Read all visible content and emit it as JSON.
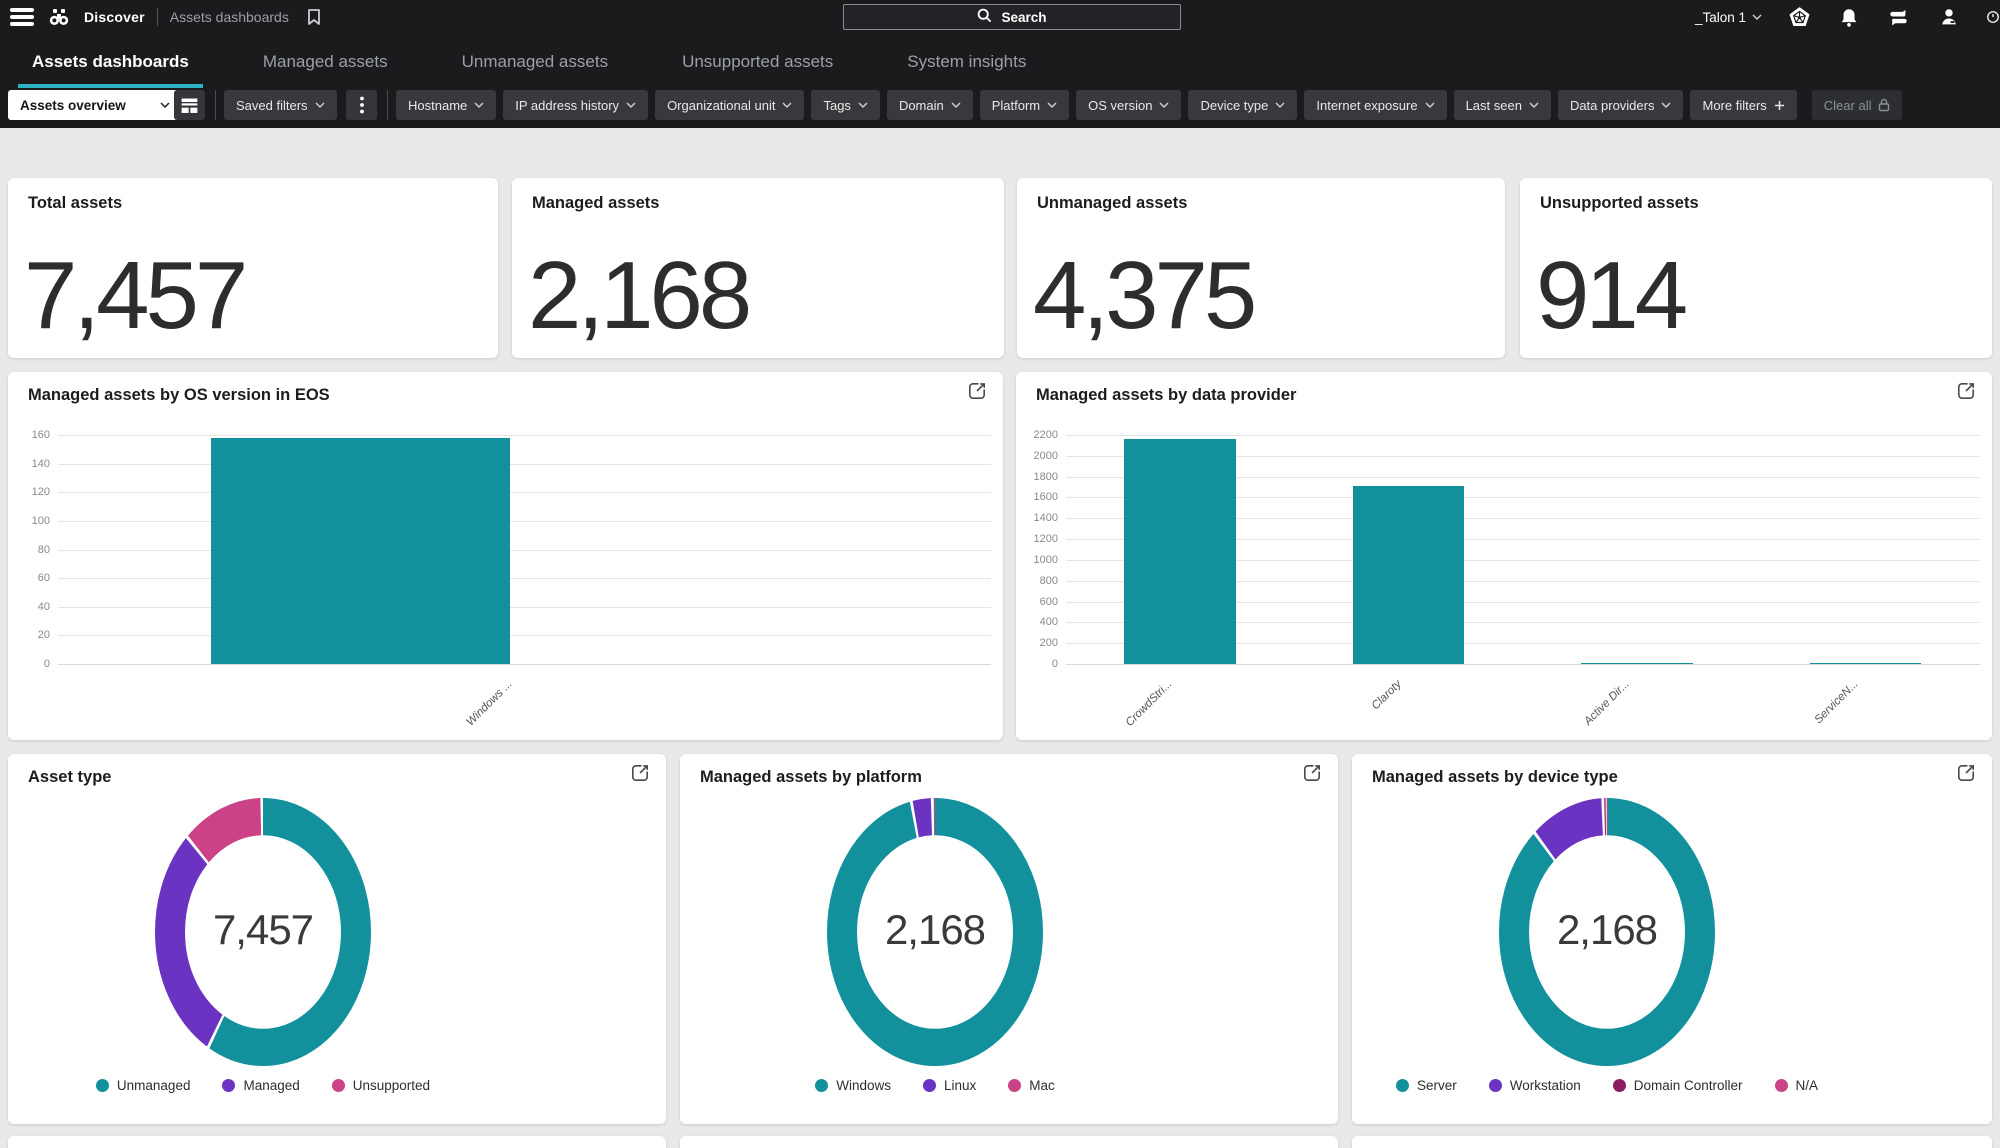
{
  "colors": {
    "teal": "#12919d",
    "purple": "#6a33c2",
    "pink": "#cb4286",
    "dark_magenta": "#8d1c63",
    "accent_underline": "#2bb3c3",
    "topbar_bg": "#1b1b1d",
    "content_bg": "#e9e9e9"
  },
  "header": {
    "product": "Discover",
    "breadcrumb": "Assets dashboards",
    "search_label": "Search",
    "account": "_Talon 1",
    "icons": [
      "hamburger-menu",
      "binoculars-discover",
      "bookmark",
      "search-magnifier",
      "marketplace-pentagon",
      "notifications-bell",
      "message-stack",
      "user-profile",
      "clock-partial"
    ]
  },
  "tabs": [
    {
      "label": "Assets dashboards",
      "active": true
    },
    {
      "label": "Managed assets",
      "active": false
    },
    {
      "label": "Unmanaged assets",
      "active": false
    },
    {
      "label": "Unsupported assets",
      "active": false
    },
    {
      "label": "System insights",
      "active": false
    }
  ],
  "filter_bar": {
    "view_selector": "Assets overview",
    "saved_filters": "Saved filters",
    "filters": [
      "Hostname",
      "IP address history",
      "Organizational unit",
      "Tags",
      "Domain",
      "Platform",
      "OS version",
      "Device type",
      "Internet exposure",
      "Last seen",
      "Data providers"
    ],
    "more_filters": "More filters",
    "clear_all": "Clear all"
  },
  "stats": [
    {
      "label": "Total assets",
      "value": "7,457"
    },
    {
      "label": "Managed assets",
      "value": "2,168"
    },
    {
      "label": "Unmanaged assets",
      "value": "4,375"
    },
    {
      "label": "Unsupported assets",
      "value": "914"
    }
  ],
  "chart_data": [
    {
      "id": "os-version-eos",
      "type": "bar",
      "title": "Managed assets by OS version in EOS",
      "categories": [
        "Windows ..."
      ],
      "values": [
        158
      ],
      "ylim": [
        0,
        160
      ],
      "ytick_step": 20,
      "grid": true,
      "legend": null,
      "bar_color": "#12919d",
      "bar_centers_pct": [
        32.4
      ],
      "label_centers_pct": [
        48
      ],
      "bar_width_pct": 32
    },
    {
      "id": "data-provider",
      "type": "bar",
      "title": "Managed assets by data provider",
      "categories": [
        "CrowdStri...",
        "Claroty",
        "Active Dir...",
        "ServiceN..."
      ],
      "values": [
        2160,
        1710,
        9,
        4
      ],
      "ylim": [
        0,
        2200
      ],
      "ytick_step": 200,
      "grid": true,
      "legend": null,
      "bar_color": "#12919d",
      "bar_centers_pct": [
        12.5,
        37.5,
        62.5,
        87.5
      ],
      "label_centers_pct": [
        11,
        36,
        61,
        86
      ],
      "bar_width_pct": 12.2
    },
    {
      "id": "asset-type",
      "type": "donut",
      "title": "Asset type",
      "center_label": "7,457",
      "segments": [
        {
          "label": "Unmanaged",
          "value": 4375,
          "color": "#12919d"
        },
        {
          "label": "Managed",
          "value": 2168,
          "color": "#6a33c2"
        },
        {
          "label": "Unsupported",
          "value": 914,
          "color": "#cb4286"
        }
      ]
    },
    {
      "id": "platform",
      "type": "donut",
      "title": "Managed assets by platform",
      "center_label": "2,168",
      "segments": [
        {
          "label": "Windows",
          "value": 2095,
          "color": "#12919d"
        },
        {
          "label": "Linux",
          "value": 68,
          "color": "#6a33c2"
        },
        {
          "label": "Mac",
          "value": 5,
          "color": "#cb4286"
        }
      ]
    },
    {
      "id": "device-type",
      "type": "donut",
      "title": "Managed assets by device type",
      "center_label": "2,168",
      "segments": [
        {
          "label": "Server",
          "value": 1918,
          "color": "#12919d"
        },
        {
          "label": "Workstation",
          "value": 240,
          "color": "#6a33c2"
        },
        {
          "label": "Domain Controller",
          "value": 8,
          "color": "#8d1c63"
        },
        {
          "label": "N/A",
          "value": 2,
          "color": "#cb4286"
        }
      ]
    }
  ]
}
